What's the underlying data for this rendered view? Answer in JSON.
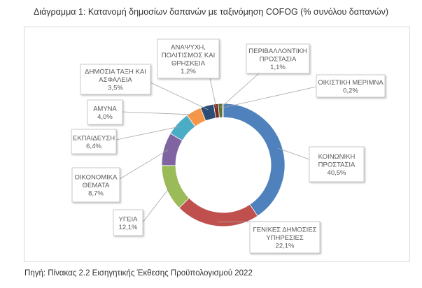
{
  "title": "Διάγραμμα 1: Κατανομή δημοσίων δαπανών με ταξινόμηση COFOG (% συνόλου δαπανών)",
  "source": "Πηγή: Πίνακας 2.2 Εισηγητικής Έκθεσης Προϋπολογισμού 2022",
  "chart_data": {
    "type": "pie",
    "variant": "doughnut",
    "slices": [
      {
        "label": [
          "ΚΟΙΝΩΝΙΚΗ",
          "ΠΡΟΣΤΑΣΙΑ"
        ],
        "value": 40.5,
        "value_text": "40,5%",
        "color": "#4f81bd"
      },
      {
        "label": [
          "ΓΕΝΙΚΕΣ ΔΗΜΟΣΙΕΣ",
          "ΥΠΗΡΕΣΙΕΣ"
        ],
        "value": 22.1,
        "value_text": "22,1%",
        "color": "#c0504d"
      },
      {
        "label": [
          "ΥΓΕΙΑ"
        ],
        "value": 12.1,
        "value_text": "12,1%",
        "color": "#9bbb59"
      },
      {
        "label": [
          "ΟΙΚΟΝΟΜΙΚΑ",
          "ΘΕΜΑΤΑ"
        ],
        "value": 8.7,
        "value_text": "8,7%",
        "color": "#8064a2"
      },
      {
        "label": [
          "ΕΚΠΑΙΔΕΥΣΗ"
        ],
        "value": 6.4,
        "value_text": "6,4%",
        "color": "#4bacc6"
      },
      {
        "label": [
          "ΑΜΥΝΑ"
        ],
        "value": 4.0,
        "value_text": "4,0%",
        "color": "#f79646"
      },
      {
        "label": [
          "ΔΗΜΟΣΙΑ ΤΑΞΗ ΚΑΙ",
          "ΑΣΦΑΛΕΙΑ"
        ],
        "value": 3.5,
        "value_text": "3,5%",
        "color": "#2c4d75"
      },
      {
        "label": [
          "ΑΝΑΨΥΧΗ,",
          "ΠΟΛΙΤΙΣΜΟΣ ΚΑΙ",
          "ΘΡΗΣΚΕΙΑ"
        ],
        "value": 1.2,
        "value_text": "1,2%",
        "color": "#772c2a"
      },
      {
        "label": [
          "ΠΕΡΙΒΑΛΛΟΝΤΙΚΗ",
          "ΠΡΟΣΤΑΣΙΑ"
        ],
        "value": 1.1,
        "value_text": "1,1%",
        "color": "#5f7530"
      },
      {
        "label": [
          "ΟΙΚΙΣΤΙΚΗ ΜΕΡΙΜΝΑ"
        ],
        "value": 0.2,
        "value_text": "0,2%",
        "color": "#4d3b62"
      }
    ],
    "legend": "none",
    "data_labels": "callouts"
  }
}
